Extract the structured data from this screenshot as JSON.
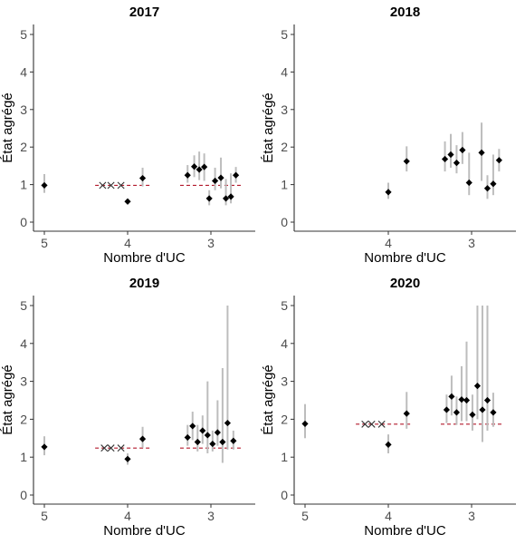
{
  "figure": {
    "ylabel": "État agrégé",
    "xlabel": "Nombre d'UC"
  },
  "colors": {
    "point": "#000000",
    "errorbar": "#bdbdbd",
    "reference": "#b2182b",
    "axis": "#333333"
  },
  "chart_data": [
    {
      "type": "scatter",
      "title": "2017",
      "xlabel": "Nombre d'UC",
      "ylabel": "État agrégé",
      "ylim": [
        0,
        5
      ],
      "y_ticks": [
        0,
        1,
        2,
        3,
        4,
        5
      ],
      "x_ticks": [
        5,
        4,
        3
      ],
      "x_axis": "reversed",
      "grid": false,
      "reference_lines": [
        {
          "x": [
            4.39,
            3.71
          ],
          "y": 0.98
        },
        {
          "x": [
            3.37,
            2.61
          ],
          "y": 0.98
        }
      ],
      "single_obs_markers": [
        4.3,
        4.2,
        4.08
      ],
      "points": [
        {
          "x": 5.0,
          "y": 0.98,
          "lo": 0.78,
          "hi": 1.28
        },
        {
          "x": 4.0,
          "y": 0.55,
          "lo": 0.55,
          "hi": 0.55
        },
        {
          "x": 3.82,
          "y": 1.17,
          "lo": 0.95,
          "hi": 1.45
        },
        {
          "x": 3.28,
          "y": 1.25,
          "lo": 1.05,
          "hi": 1.52
        },
        {
          "x": 3.2,
          "y": 1.48,
          "lo": 1.2,
          "hi": 1.78
        },
        {
          "x": 3.14,
          "y": 1.4,
          "lo": 1.12,
          "hi": 1.88
        },
        {
          "x": 3.08,
          "y": 1.47,
          "lo": 1.1,
          "hi": 1.83
        },
        {
          "x": 3.02,
          "y": 0.63,
          "lo": 0.45,
          "hi": 0.85
        },
        {
          "x": 2.95,
          "y": 1.1,
          "lo": 0.85,
          "hi": 1.45
        },
        {
          "x": 2.88,
          "y": 1.18,
          "lo": 0.9,
          "hi": 1.72
        },
        {
          "x": 2.82,
          "y": 0.63,
          "lo": 0.45,
          "hi": 1.15
        },
        {
          "x": 2.76,
          "y": 0.68,
          "lo": 0.5,
          "hi": 1.3
        },
        {
          "x": 2.7,
          "y": 1.25,
          "lo": 1.05,
          "hi": 1.47
        }
      ]
    },
    {
      "type": "scatter",
      "title": "2018",
      "xlabel": "Nombre d'UC",
      "ylabel": "État agrégé",
      "ylim": [
        0,
        5
      ],
      "y_ticks": [
        0,
        1,
        2,
        3,
        4,
        5
      ],
      "x_ticks": [
        4,
        3
      ],
      "x_axis": "reversed",
      "grid": false,
      "reference_lines": [],
      "single_obs_markers": [],
      "points": [
        {
          "x": 4.0,
          "y": 0.8,
          "lo": 0.62,
          "hi": 1.05
        },
        {
          "x": 3.78,
          "y": 1.62,
          "lo": 1.35,
          "hi": 2.02
        },
        {
          "x": 3.32,
          "y": 1.68,
          "lo": 1.35,
          "hi": 2.15
        },
        {
          "x": 3.25,
          "y": 1.8,
          "lo": 1.45,
          "hi": 2.35
        },
        {
          "x": 3.18,
          "y": 1.58,
          "lo": 1.3,
          "hi": 2.05
        },
        {
          "x": 3.11,
          "y": 1.92,
          "lo": 1.55,
          "hi": 2.4
        },
        {
          "x": 3.03,
          "y": 1.05,
          "lo": 0.72,
          "hi": 1.85
        },
        {
          "x": 2.88,
          "y": 1.85,
          "lo": 1.1,
          "hi": 2.65
        },
        {
          "x": 2.81,
          "y": 0.9,
          "lo": 0.62,
          "hi": 1.25
        },
        {
          "x": 2.74,
          "y": 1.02,
          "lo": 0.72,
          "hi": 1.8
        },
        {
          "x": 2.67,
          "y": 1.65,
          "lo": 1.35,
          "hi": 1.95
        }
      ]
    },
    {
      "type": "scatter",
      "title": "2019",
      "xlabel": "Nombre d'UC",
      "ylabel": "État agrégé",
      "ylim": [
        0,
        5
      ],
      "y_ticks": [
        0,
        1,
        2,
        3,
        4,
        5
      ],
      "x_ticks": [
        5,
        4,
        3
      ],
      "x_axis": "reversed",
      "grid": false,
      "reference_lines": [
        {
          "x": [
            4.39,
            3.71
          ],
          "y": 1.24
        },
        {
          "x": [
            3.37,
            2.61
          ],
          "y": 1.24
        }
      ],
      "single_obs_markers": [
        4.28,
        4.2,
        4.08
      ],
      "points": [
        {
          "x": 5.0,
          "y": 1.27,
          "lo": 1.05,
          "hi": 1.55
        },
        {
          "x": 4.0,
          "y": 0.95,
          "lo": 0.8,
          "hi": 1.1
        },
        {
          "x": 3.82,
          "y": 1.48,
          "lo": 1.25,
          "hi": 1.8
        },
        {
          "x": 3.28,
          "y": 1.52,
          "lo": 1.3,
          "hi": 1.85
        },
        {
          "x": 3.22,
          "y": 1.82,
          "lo": 1.45,
          "hi": 2.2
        },
        {
          "x": 3.16,
          "y": 1.4,
          "lo": 1.15,
          "hi": 1.85
        },
        {
          "x": 3.1,
          "y": 1.7,
          "lo": 1.35,
          "hi": 2.1
        },
        {
          "x": 3.04,
          "y": 1.58,
          "lo": 1.1,
          "hi": 3.0
        },
        {
          "x": 2.98,
          "y": 1.35,
          "lo": 1.15,
          "hi": 1.7
        },
        {
          "x": 2.92,
          "y": 1.65,
          "lo": 1.3,
          "hi": 2.5
        },
        {
          "x": 2.86,
          "y": 1.4,
          "lo": 0.85,
          "hi": 3.35
        },
        {
          "x": 2.8,
          "y": 1.9,
          "lo": 1.2,
          "hi": 5.0
        },
        {
          "x": 2.73,
          "y": 1.43,
          "lo": 1.2,
          "hi": 1.7
        }
      ]
    },
    {
      "type": "scatter",
      "title": "2020",
      "xlabel": "Nombre d'UC",
      "ylabel": "État agrégé",
      "ylim": [
        0,
        5
      ],
      "y_ticks": [
        0,
        1,
        2,
        3,
        4,
        5
      ],
      "x_ticks": [
        5,
        4,
        3
      ],
      "x_axis": "reversed",
      "grid": false,
      "reference_lines": [
        {
          "x": [
            4.39,
            3.71
          ],
          "y": 1.87
        },
        {
          "x": [
            3.37,
            2.61
          ],
          "y": 1.87
        }
      ],
      "single_obs_markers": [
        4.28,
        4.2,
        4.08
      ],
      "points": [
        {
          "x": 5.0,
          "y": 1.88,
          "lo": 1.5,
          "hi": 2.4
        },
        {
          "x": 4.0,
          "y": 1.33,
          "lo": 1.1,
          "hi": 1.6
        },
        {
          "x": 3.78,
          "y": 2.15,
          "lo": 1.75,
          "hi": 2.72
        },
        {
          "x": 3.3,
          "y": 2.25,
          "lo": 1.9,
          "hi": 2.65
        },
        {
          "x": 3.24,
          "y": 2.6,
          "lo": 2.1,
          "hi": 3.15
        },
        {
          "x": 3.18,
          "y": 2.18,
          "lo": 1.85,
          "hi": 2.6
        },
        {
          "x": 3.12,
          "y": 2.52,
          "lo": 1.95,
          "hi": 3.4
        },
        {
          "x": 3.06,
          "y": 2.5,
          "lo": 1.95,
          "hi": 4.05
        },
        {
          "x": 2.99,
          "y": 2.12,
          "lo": 1.7,
          "hi": 2.65
        },
        {
          "x": 2.93,
          "y": 2.88,
          "lo": 2.0,
          "hi": 5.0
        },
        {
          "x": 2.87,
          "y": 2.25,
          "lo": 1.4,
          "hi": 5.0
        },
        {
          "x": 2.81,
          "y": 2.5,
          "lo": 1.7,
          "hi": 5.0
        },
        {
          "x": 2.74,
          "y": 2.18,
          "lo": 1.8,
          "hi": 2.7
        }
      ]
    }
  ]
}
